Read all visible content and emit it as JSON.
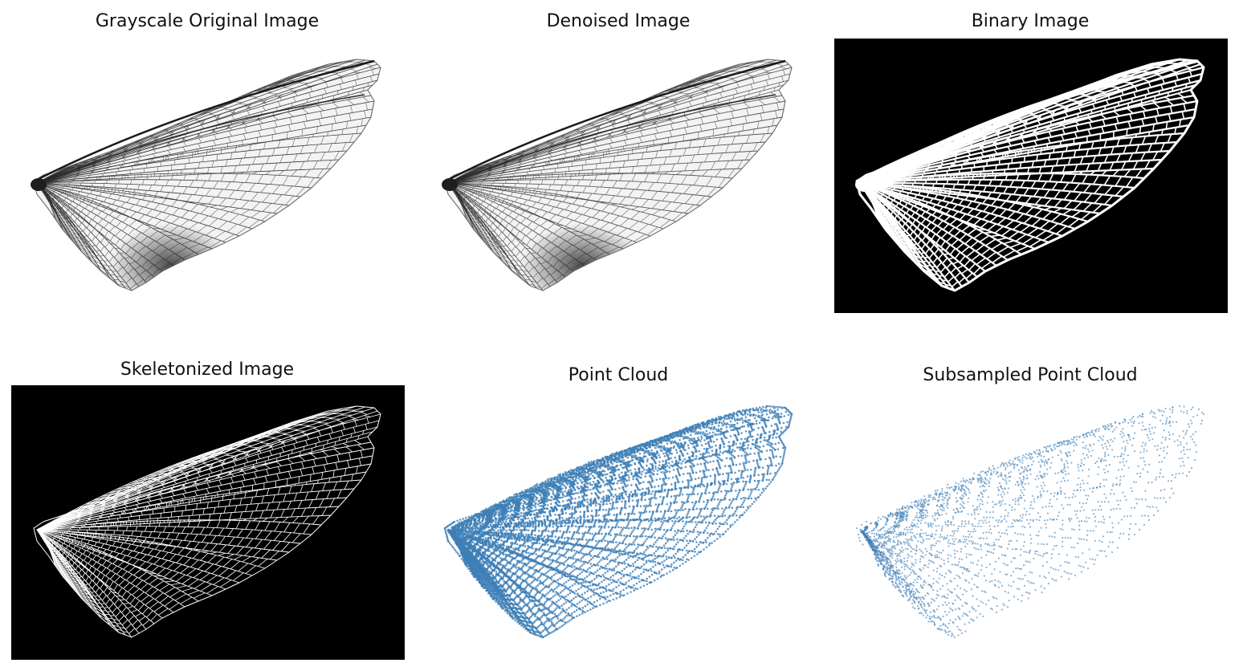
{
  "figure": {
    "panels": [
      {
        "title": "Grayscale Original Image",
        "style": "grayscale"
      },
      {
        "title": "Denoised Image",
        "style": "denoised"
      },
      {
        "title": "Binary Image",
        "style": "binary"
      },
      {
        "title": "Skeletonized Image",
        "style": "skeleton"
      },
      {
        "title": "Point Cloud",
        "style": "points"
      },
      {
        "title": "Subsampled Point Cloud",
        "style": "points-sparse"
      }
    ]
  },
  "colors": {
    "background": "#ffffff",
    "binary_background": "#000000",
    "vein_white": "#ffffff",
    "vein_dark": "#2a2a2a",
    "wing_shadow": "#3a3a3a",
    "point_blue": "#3f7fb6",
    "title_text": "#111111"
  }
}
